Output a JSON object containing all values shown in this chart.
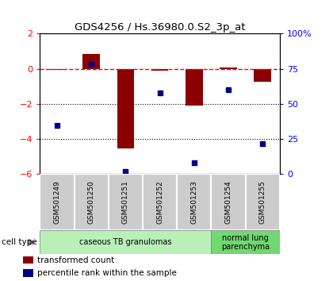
{
  "title": "GDS4256 / Hs.36980.0.S2_3p_at",
  "samples": [
    "GSM501249",
    "GSM501250",
    "GSM501251",
    "GSM501252",
    "GSM501253",
    "GSM501254",
    "GSM501255"
  ],
  "transformed_counts": [
    -0.05,
    0.85,
    -4.55,
    -0.08,
    -2.1,
    0.1,
    -0.75
  ],
  "percentile_ranks": [
    35,
    78,
    2,
    58,
    8,
    60,
    22
  ],
  "ylim_left": [
    -6,
    2
  ],
  "ylim_right": [
    0,
    100
  ],
  "yticks_left": [
    -6,
    -4,
    -2,
    0,
    2
  ],
  "yticks_right": [
    0,
    25,
    50,
    75,
    100
  ],
  "ytick_labels_right": [
    "0",
    "25",
    "50",
    "75",
    "100%"
  ],
  "bar_color": "#8B0000",
  "dot_color": "#00008B",
  "hline_y": 0,
  "dotted_lines": [
    -2,
    -4
  ],
  "cell_type_groups": [
    {
      "label": "caseous TB granulomas",
      "indices": [
        0,
        1,
        2,
        3,
        4
      ],
      "color": "#b8f0b8"
    },
    {
      "label": "normal lung\nparenchyma",
      "indices": [
        5,
        6
      ],
      "color": "#70d870"
    }
  ],
  "legend_items": [
    {
      "label": "transformed count",
      "color": "#8B0000"
    },
    {
      "label": "percentile rank within the sample",
      "color": "#00008B"
    }
  ],
  "cell_type_label": "cell type"
}
